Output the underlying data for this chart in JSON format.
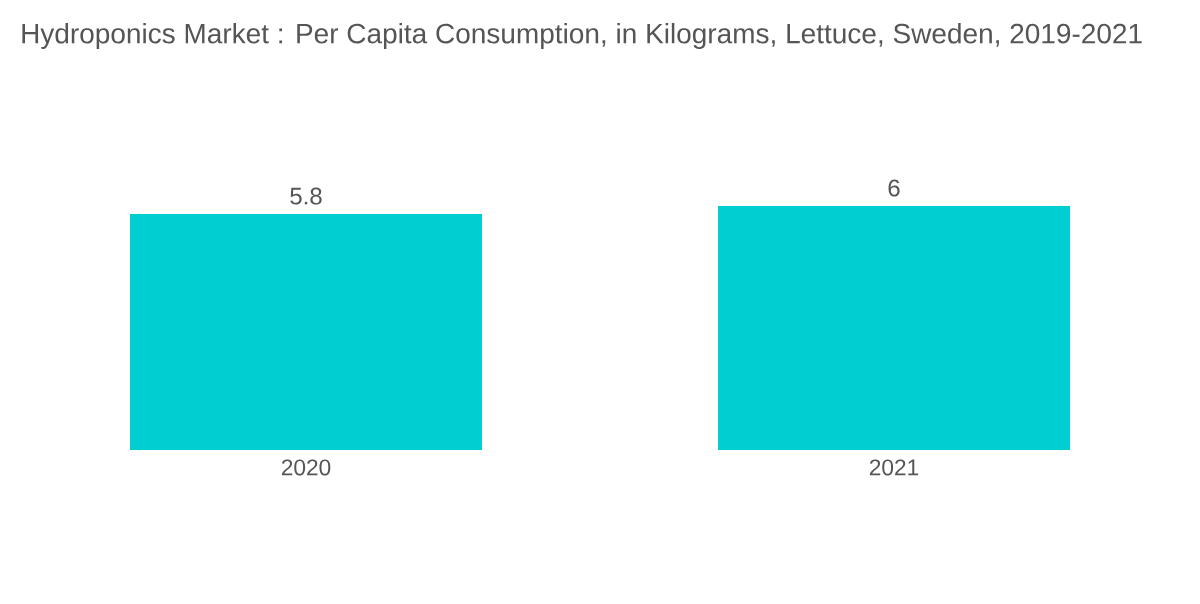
{
  "chart_data": {
    "type": "bar",
    "title": "Hydroponics Market : Per Capita Consumption, in Kilograms, Lettuce, Sweden, 2019-2021",
    "categories": [
      "2020",
      "2021"
    ],
    "values": [
      5.8,
      6
    ],
    "color": "#00ced1",
    "data_labels": true
  }
}
